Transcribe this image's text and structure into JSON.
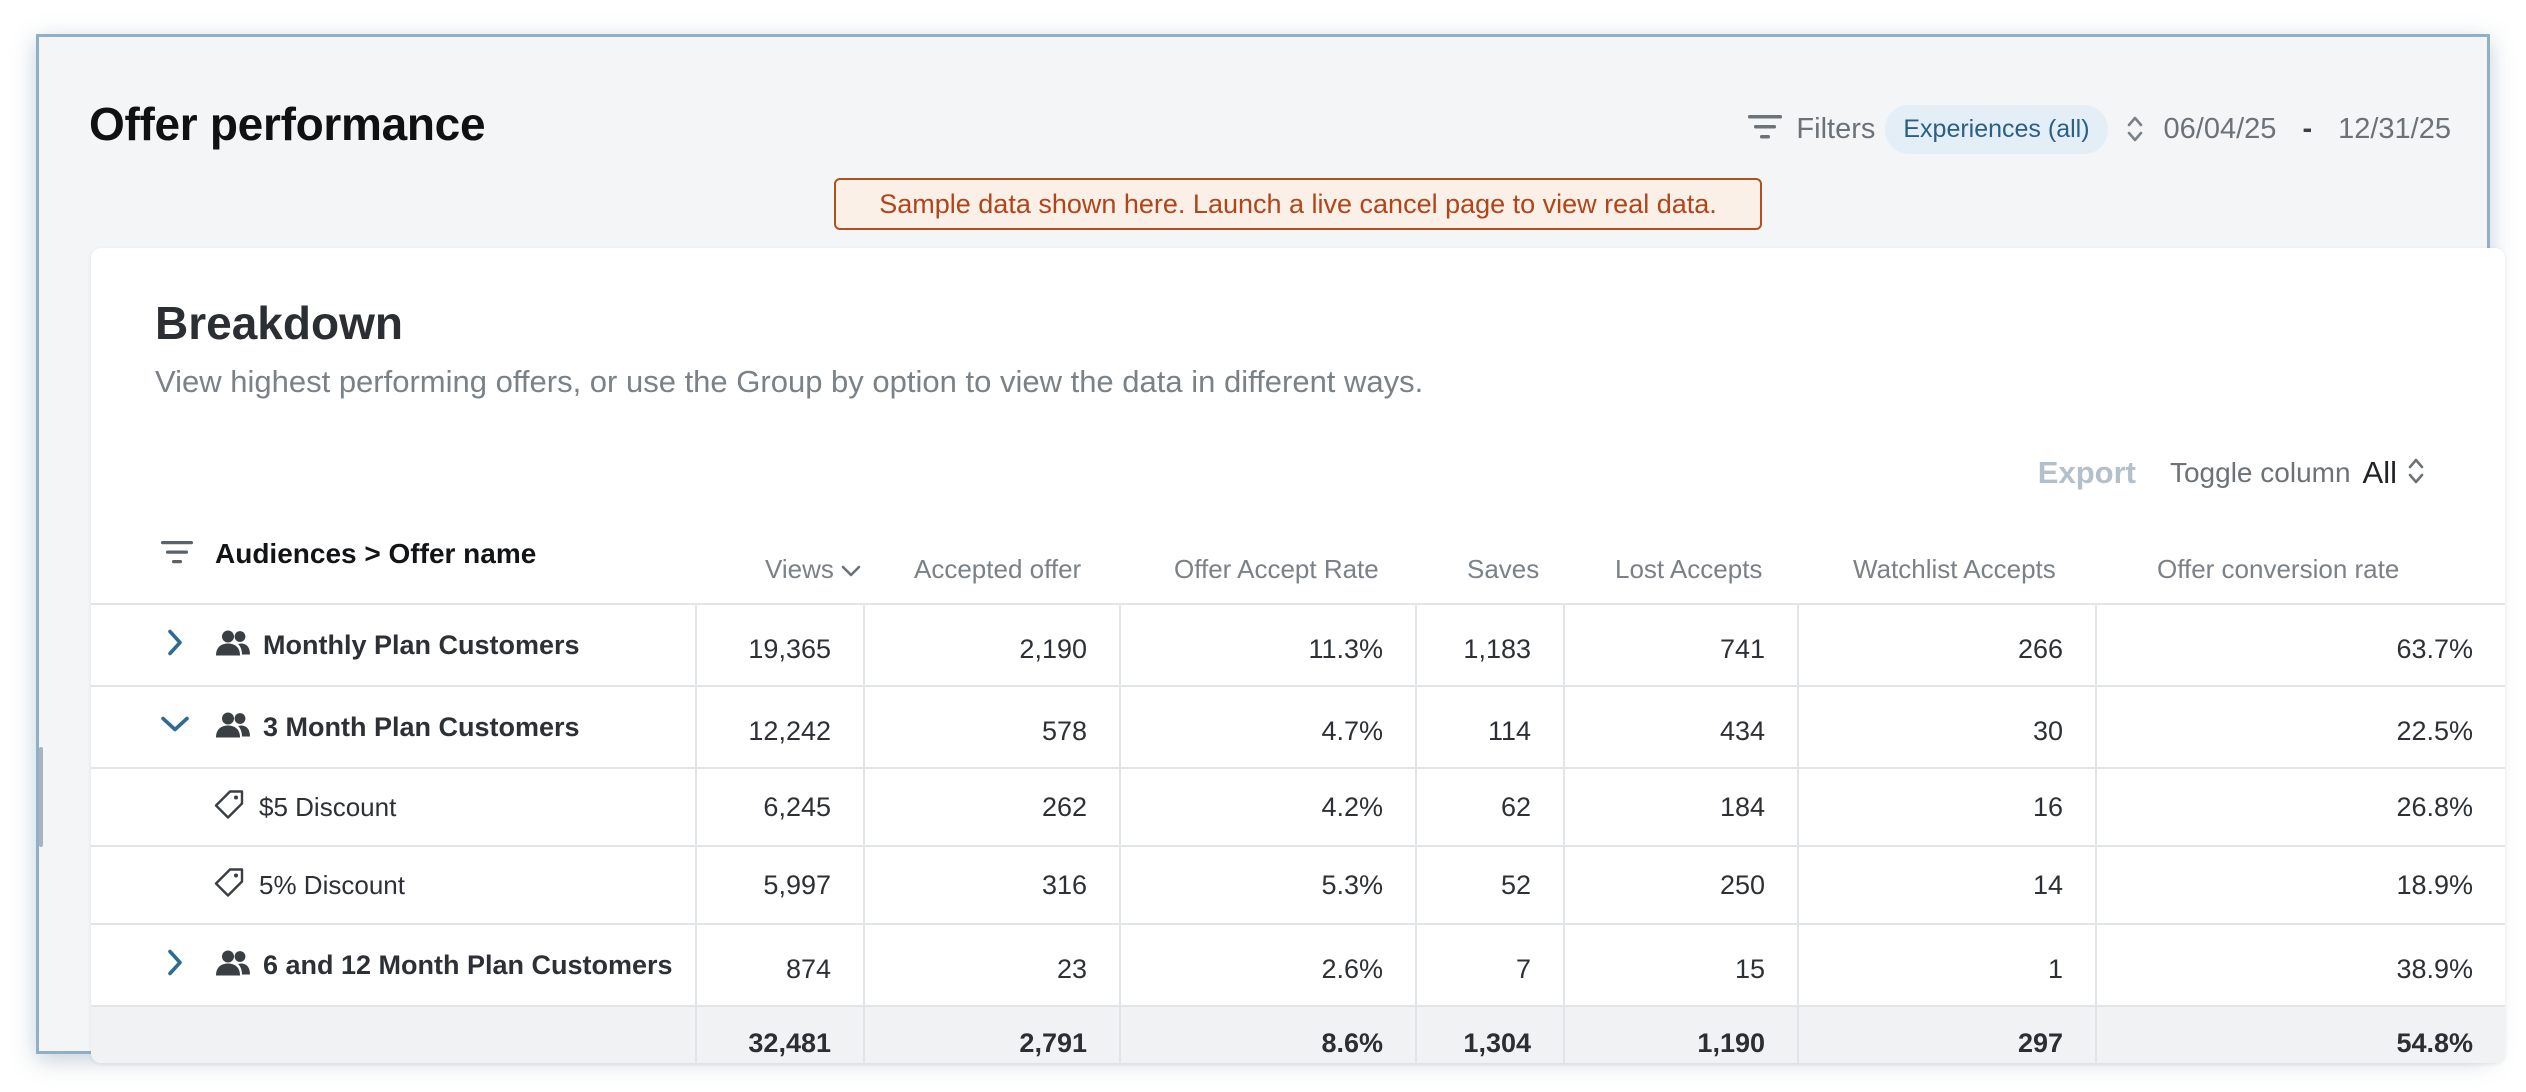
{
  "page": {
    "title": "Offer performance"
  },
  "topbar": {
    "filters_label": "Filters",
    "experience_pill": "Experiences (all)",
    "date_start": "06/04/25",
    "date_separator": "-",
    "date_end": "12/31/25"
  },
  "banner": {
    "text": "Sample data shown here. Launch a live cancel page to view real data."
  },
  "breakdown": {
    "title": "Breakdown",
    "description": "View highest performing offers, or use the Group by option to view the data in different ways.",
    "export_label": "Export",
    "toggle_label": "Toggle column",
    "toggle_value": "All",
    "group_header": "Audiences > Offer name",
    "columns": [
      "Views",
      "Accepted offer",
      "Offer Accept Rate",
      "Saves",
      "Lost Accepts",
      "Watchlist Accepts",
      "Offer conversion rate"
    ],
    "rows": [
      {
        "name": "Monthly Plan Customers",
        "type": "audience",
        "expanded": false,
        "cells": [
          "19,365",
          "2,190",
          "11.3%",
          "1,183",
          "741",
          "266",
          "63.7%"
        ]
      },
      {
        "name": "3 Month Plan Customers",
        "type": "audience",
        "expanded": true,
        "cells": [
          "12,242",
          "578",
          "4.7%",
          "114",
          "434",
          "30",
          "22.5%"
        ]
      },
      {
        "name": "$5 Discount",
        "type": "offer",
        "cells": [
          "6,245",
          "262",
          "4.2%",
          "62",
          "184",
          "16",
          "26.8%"
        ]
      },
      {
        "name": "5% Discount",
        "type": "offer",
        "cells": [
          "5,997",
          "316",
          "5.3%",
          "52",
          "250",
          "14",
          "18.9%"
        ]
      },
      {
        "name": "6 and 12 Month Plan Customers",
        "type": "audience",
        "expanded": false,
        "cells": [
          "874",
          "23",
          "2.6%",
          "7",
          "15",
          "1",
          "38.9%"
        ]
      }
    ],
    "totals": [
      "32,481",
      "2,791",
      "8.6%",
      "1,304",
      "1,190",
      "297",
      "54.8%"
    ]
  },
  "colors": {
    "frame_border": "#8fb0c8",
    "banner_border": "#b0501f",
    "banner_text": "#b0451a",
    "pill_bg": "#e3eef7",
    "pill_text": "#2a5f86",
    "chevron": "#2f6b93"
  },
  "icons": {
    "filter": "filter-lines-icon",
    "sort": "chevron-up-down-icon",
    "audience": "people-icon",
    "offer": "tag-icon",
    "expand": "chevron-right-icon",
    "collapse": "chevron-down-icon"
  }
}
